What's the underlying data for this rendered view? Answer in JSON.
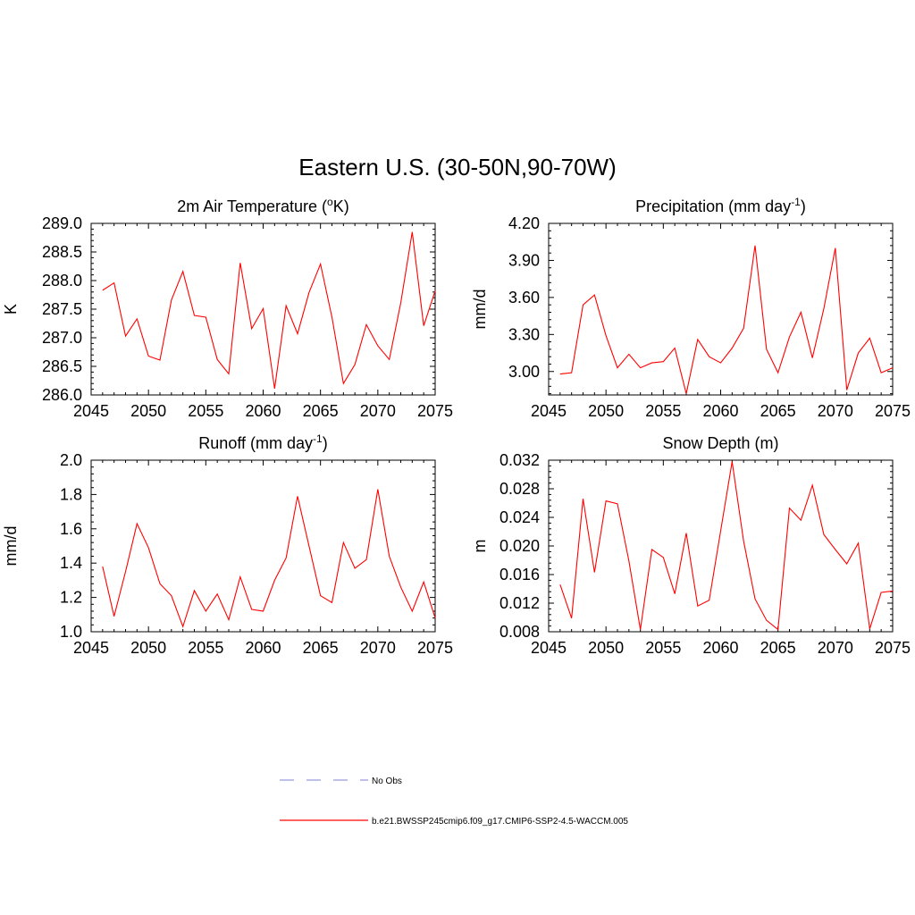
{
  "title": "Eastern U.S. (30-50N,90-70W)",
  "colors": {
    "series": "#ff0000",
    "no_obs": "#9999dd",
    "axis": "#000000"
  },
  "legend": [
    {
      "label": "No Obs",
      "style": "dashed",
      "color": "#9999dd"
    },
    {
      "label": "b.e21.BWSSP245cmip6.f09_g17.CMIP6-SSP2-4.5-WACCM.005",
      "style": "solid",
      "color": "#ff0000"
    }
  ],
  "chart_data": [
    {
      "type": "line",
      "title": "2m Air Temperature (oK)",
      "title_parts": [
        "2m Air Temperature (",
        "o",
        "K)"
      ],
      "xlabel": "",
      "ylabel": "K",
      "xlim": [
        2045,
        2075
      ],
      "ylim": [
        286.0,
        289.0
      ],
      "x_ticks": [
        "2045",
        "2050",
        "2055",
        "2060",
        "2065",
        "2070",
        "2075"
      ],
      "y_ticks": [
        "286.0",
        "286.5",
        "287.0",
        "287.5",
        "288.0",
        "288.5",
        "289.0"
      ],
      "x": [
        2046,
        2047,
        2048,
        2049,
        2050,
        2051,
        2052,
        2053,
        2054,
        2055,
        2056,
        2057,
        2058,
        2059,
        2060,
        2061,
        2062,
        2063,
        2064,
        2065,
        2066,
        2067,
        2068,
        2069,
        2070,
        2071,
        2072,
        2073,
        2074,
        2075
      ],
      "series": [
        {
          "values": [
            287.83,
            287.96,
            287.03,
            287.33,
            286.68,
            286.61,
            287.66,
            288.16,
            287.39,
            287.36,
            286.62,
            286.37,
            288.31,
            287.16,
            287.51,
            286.11,
            287.56,
            287.07,
            287.79,
            288.29,
            287.36,
            286.2,
            286.53,
            287.23,
            286.86,
            286.62,
            287.61,
            288.85,
            287.21,
            287.82
          ]
        }
      ]
    },
    {
      "type": "line",
      "title": "Precipitation (mm day-1)",
      "title_parts": [
        "Precipitation (mm day",
        "-1",
        ")"
      ],
      "xlabel": "",
      "ylabel": "mm/d",
      "xlim": [
        2045,
        2075
      ],
      "ylim": [
        2.81,
        4.2
      ],
      "x_ticks": [
        "2045",
        "2050",
        "2055",
        "2060",
        "2065",
        "2070",
        "2075"
      ],
      "y_ticks": [
        "3.00",
        "3.30",
        "3.60",
        "3.90",
        "4.20"
      ],
      "x": [
        2046,
        2047,
        2048,
        2049,
        2050,
        2051,
        2052,
        2053,
        2054,
        2055,
        2056,
        2057,
        2058,
        2059,
        2060,
        2061,
        2062,
        2063,
        2064,
        2065,
        2066,
        2067,
        2068,
        2069,
        2070,
        2071,
        2072,
        2073,
        2074,
        2075
      ],
      "series": [
        {
          "values": [
            2.98,
            2.99,
            3.54,
            3.62,
            3.29,
            3.03,
            3.14,
            3.03,
            3.07,
            3.08,
            3.19,
            2.82,
            3.26,
            3.12,
            3.07,
            3.19,
            3.35,
            4.02,
            3.18,
            2.99,
            3.28,
            3.48,
            3.11,
            3.51,
            4.0,
            2.85,
            3.15,
            3.27,
            2.99,
            3.03
          ]
        }
      ]
    },
    {
      "type": "line",
      "title": "Runoff (mm day-1)",
      "title_parts": [
        "Runoff (mm day",
        "-1",
        ")"
      ],
      "xlabel": "",
      "ylabel": "mm/d",
      "xlim": [
        2045,
        2075
      ],
      "ylim": [
        1.0,
        2.0
      ],
      "x_ticks": [
        "2045",
        "2050",
        "2055",
        "2060",
        "2065",
        "2070",
        "2075"
      ],
      "y_ticks": [
        "1.0",
        "1.2",
        "1.4",
        "1.6",
        "1.8",
        "2.0"
      ],
      "x": [
        2046,
        2047,
        2048,
        2049,
        2050,
        2051,
        2052,
        2053,
        2054,
        2055,
        2056,
        2057,
        2058,
        2059,
        2060,
        2061,
        2062,
        2063,
        2064,
        2065,
        2066,
        2067,
        2068,
        2069,
        2070,
        2071,
        2072,
        2073,
        2074,
        2075
      ],
      "series": [
        {
          "values": [
            1.38,
            1.09,
            1.35,
            1.63,
            1.49,
            1.28,
            1.21,
            1.03,
            1.24,
            1.12,
            1.22,
            1.07,
            1.32,
            1.13,
            1.12,
            1.3,
            1.43,
            1.79,
            1.5,
            1.21,
            1.17,
            1.52,
            1.37,
            1.42,
            1.83,
            1.44,
            1.26,
            1.12,
            1.29,
            1.08
          ]
        }
      ]
    },
    {
      "type": "line",
      "title": "Snow Depth (m)",
      "title_parts": [
        "Snow Depth (m)",
        "",
        ""
      ],
      "xlabel": "",
      "ylabel": "m",
      "xlim": [
        2045,
        2075
      ],
      "ylim": [
        0.008,
        0.032
      ],
      "x_ticks": [
        "2045",
        "2050",
        "2055",
        "2060",
        "2065",
        "2070",
        "2075"
      ],
      "y_ticks": [
        "0.008",
        "0.012",
        "0.016",
        "0.020",
        "0.024",
        "0.028",
        "0.032"
      ],
      "x": [
        2046,
        2047,
        2048,
        2049,
        2050,
        2051,
        2052,
        2053,
        2054,
        2055,
        2056,
        2057,
        2058,
        2059,
        2060,
        2061,
        2062,
        2063,
        2064,
        2065,
        2066,
        2067,
        2068,
        2069,
        2070,
        2071,
        2072,
        2073,
        2074,
        2075
      ],
      "series": [
        {
          "values": [
            0.0146,
            0.0099,
            0.0266,
            0.0163,
            0.0263,
            0.0259,
            0.0179,
            0.0083,
            0.0195,
            0.0184,
            0.0133,
            0.0218,
            0.0116,
            0.0124,
            0.0221,
            0.0318,
            0.0207,
            0.0126,
            0.0096,
            0.0083,
            0.0253,
            0.0236,
            0.0285,
            0.0216,
            0.0195,
            0.0175,
            0.0204,
            0.0084,
            0.0135,
            0.0137
          ]
        }
      ]
    }
  ]
}
